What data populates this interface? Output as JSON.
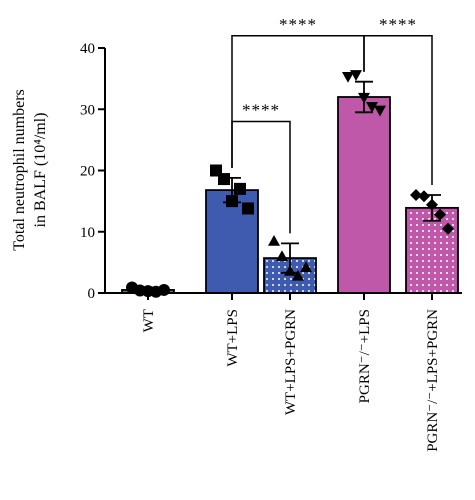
{
  "chart_data": {
    "type": "bar",
    "ylabel_line1": "Total neutrophil numbers",
    "ylabel_line2": "in BALF (10⁴/ml)",
    "ylim": [
      0,
      40
    ],
    "yticks": [
      "0",
      "10",
      "20",
      "30",
      "40"
    ],
    "categories": [
      "WT",
      "WT+LPS",
      "WT+LPS+PGRN",
      "PGRN⁻/⁻+LPS",
      "PGRN⁻/⁻+LPS+PGRN"
    ],
    "values": [
      0.5,
      16.8,
      5.7,
      32.0,
      13.9
    ],
    "errors": [
      0.4,
      2.0,
      2.4,
      2.5,
      2.1
    ],
    "bar_colors": [
      "#3a8a7a",
      "#3f5bb0",
      "#3f5bb0",
      "#bf58a8",
      "#bf58a8"
    ],
    "bar_patterns": [
      "solid",
      "solid",
      "dotted",
      "solid",
      "dotted"
    ],
    "points": [
      {
        "marker": "circle",
        "values": [
          0.9,
          0.4,
          0.3,
          0.2,
          0.5
        ]
      },
      {
        "marker": "square",
        "values": [
          20.0,
          18.6,
          15.0,
          17.0,
          13.8
        ]
      },
      {
        "marker": "triangle-up",
        "values": [
          8.5,
          6.0,
          3.6,
          2.8,
          4.2
        ]
      },
      {
        "marker": "triangle-down",
        "values": [
          35.3,
          35.6,
          31.9,
          30.4,
          29.8
        ]
      },
      {
        "marker": "diamond",
        "values": [
          16.0,
          15.8,
          14.4,
          12.8,
          10.5
        ]
      }
    ],
    "significance": [
      {
        "from": 1,
        "to": 2,
        "label": "****",
        "y": 28.0
      },
      {
        "from": 1,
        "to": 3,
        "label": "****",
        "y": 42.0
      },
      {
        "from": 3,
        "to": 4,
        "label": "****",
        "y": 42.0
      }
    ]
  }
}
